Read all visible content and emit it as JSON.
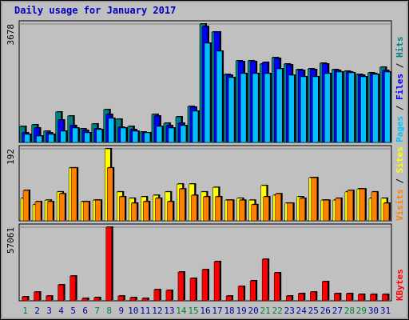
{
  "chart_data": [
    {
      "type": "bar",
      "title": "Daily usage for January 2017",
      "ylim": [
        0,
        3678
      ],
      "yticks": [
        3678
      ],
      "series": [
        {
          "name": "Hits",
          "color": "#008080",
          "values": [
            497,
            547,
            348,
            944,
            820,
            422,
            572,
            1019,
            721,
            497,
            323,
            870,
            596,
            795,
            1118,
            3678,
            3429,
            2112,
            2535,
            2535,
            2435,
            2634,
            2435,
            2261,
            2286,
            2460,
            2261,
            2212,
            2112,
            2162,
            2336
          ]
        },
        {
          "name": "Files",
          "color": "#0000ff",
          "values": [
            298,
            447,
            298,
            696,
            522,
            373,
            422,
            870,
            472,
            398,
            298,
            820,
            522,
            596,
            1093,
            3600,
            3429,
            2087,
            2510,
            2510,
            2485,
            2609,
            2410,
            2236,
            2261,
            2435,
            2236,
            2187,
            2087,
            2137,
            2236
          ]
        },
        {
          "name": "Pages",
          "color": "#00c0ff",
          "values": [
            249,
            199,
            249,
            348,
            447,
            298,
            398,
            746,
            447,
            348,
            298,
            497,
            447,
            522,
            969,
            3081,
            2833,
            2013,
            2137,
            2137,
            2137,
            2286,
            2087,
            2038,
            2038,
            2137,
            2187,
            2162,
            2038,
            2112,
            2187
          ]
        }
      ]
    },
    {
      "type": "bar",
      "ylim": [
        0,
        192
      ],
      "yticks": [
        192
      ],
      "series": [
        {
          "name": "Sites",
          "color": "#ffff00",
          "values": [
            60,
            43,
            55,
            77,
            141,
            51,
            55,
            192,
            77,
            60,
            64,
            68,
            77,
            98,
            98,
            77,
            89,
            55,
            60,
            55,
            94,
            68,
            47,
            64,
            115,
            55,
            55,
            77,
            85,
            60,
            60
          ]
        },
        {
          "name": "Visits",
          "color": "#ff8000",
          "values": [
            81,
            51,
            51,
            72,
            141,
            51,
            55,
            141,
            64,
            47,
            51,
            60,
            51,
            85,
            68,
            64,
            64,
            55,
            55,
            43,
            64,
            72,
            47,
            60,
            115,
            55,
            60,
            81,
            85,
            77,
            47
          ]
        }
      ]
    },
    {
      "type": "bar",
      "ylim": [
        0,
        57061
      ],
      "yticks": [
        57061
      ],
      "categories": [
        "1",
        "2",
        "3",
        "4",
        "5",
        "6",
        "7",
        "8",
        "9",
        "10",
        "11",
        "12",
        "13",
        "14",
        "15",
        "16",
        "17",
        "18",
        "19",
        "20",
        "21",
        "22",
        "23",
        "24",
        "25",
        "26",
        "27",
        "28",
        "29",
        "30",
        "31"
      ],
      "category_colors": [
        "#008040",
        "#0000a0",
        "#0000a0",
        "#0000a0",
        "#0000a0",
        "#0000a0",
        "#008040",
        "#008040",
        "#0000a0",
        "#0000a0",
        "#0000a0",
        "#0000a0",
        "#0000a0",
        "#008040",
        "#008040",
        "#0000a0",
        "#0000a0",
        "#0000a0",
        "#0000a0",
        "#0000a0",
        "#008040",
        "#008040",
        "#0000a0",
        "#0000a0",
        "#0000a0",
        "#0000a0",
        "#0000a0",
        "#008040",
        "#008040",
        "#0000a0",
        "#0000a0"
      ],
      "series": [
        {
          "name": "KBytes",
          "color": "#ff0000",
          "values": [
            3100,
            6800,
            3700,
            12400,
            19200,
            1900,
            2500,
            57061,
            3700,
            2500,
            1900,
            8700,
            8100,
            22300,
            17400,
            24200,
            30400,
            3700,
            11200,
            15500,
            32200,
            21700,
            3700,
            5600,
            6800,
            14900,
            5600,
            5600,
            5000,
            5000,
            5000
          ]
        }
      ]
    }
  ]
}
